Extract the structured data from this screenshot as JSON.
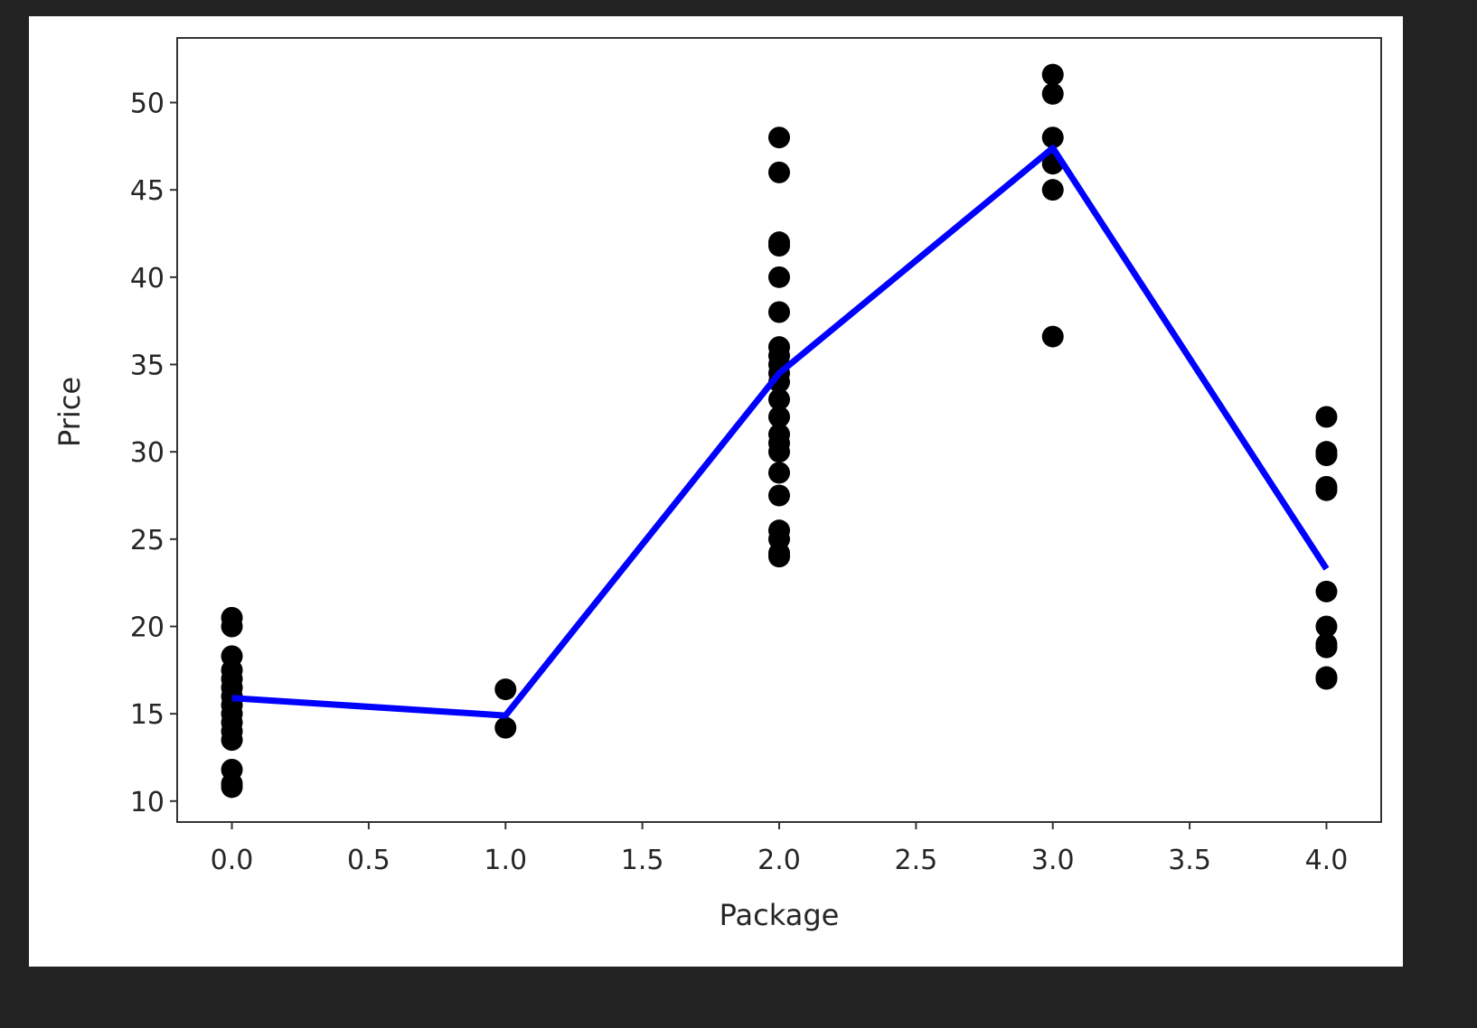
{
  "chart_data": {
    "type": "scatter",
    "title": "",
    "xlabel": "Package",
    "ylabel": "Price",
    "xlim": [
      -0.2,
      4.2
    ],
    "ylim": [
      8.8,
      53.7
    ],
    "xticks": [
      "0.0",
      "0.5",
      "1.0",
      "1.5",
      "2.0",
      "2.5",
      "3.0",
      "3.5",
      "4.0"
    ],
    "yticks": [
      "10",
      "15",
      "20",
      "25",
      "30",
      "35",
      "40",
      "45",
      "50"
    ],
    "grid": false,
    "legend": "none",
    "colors": {
      "points": "#000000",
      "line": "#0000ff"
    },
    "scatter": {
      "x": [
        0,
        0,
        0,
        0,
        0,
        0,
        0,
        0,
        0,
        0,
        0,
        0,
        0,
        0,
        0,
        1,
        1,
        2,
        2,
        2,
        2,
        2,
        2,
        2,
        2,
        2,
        2,
        2,
        2,
        2,
        2,
        2,
        2,
        2,
        2,
        2,
        2,
        2,
        2,
        3,
        3,
        3,
        3,
        3,
        3,
        4,
        4,
        4,
        4,
        4,
        4,
        4,
        4,
        4,
        4,
        4
      ],
      "y": [
        20.5,
        20,
        18.3,
        17.5,
        17,
        16.5,
        16,
        15.5,
        15,
        14.5,
        14,
        13.5,
        11.8,
        11,
        10.8,
        16.4,
        14.2,
        48,
        46,
        42,
        41.8,
        40,
        38,
        36,
        35.5,
        35,
        34.5,
        34,
        33,
        32,
        31,
        30.5,
        30,
        28.8,
        27.5,
        25.5,
        25,
        24.2,
        24,
        51.6,
        50.5,
        48,
        46.5,
        45,
        36.6,
        32,
        30,
        29.8,
        28,
        27.8,
        22,
        20,
        19,
        18.8,
        17.1,
        17
      ]
    },
    "line": {
      "x": [
        0,
        1,
        2,
        3,
        4
      ],
      "y": [
        15.9,
        14.9,
        34.5,
        47.4,
        23.3
      ]
    }
  }
}
